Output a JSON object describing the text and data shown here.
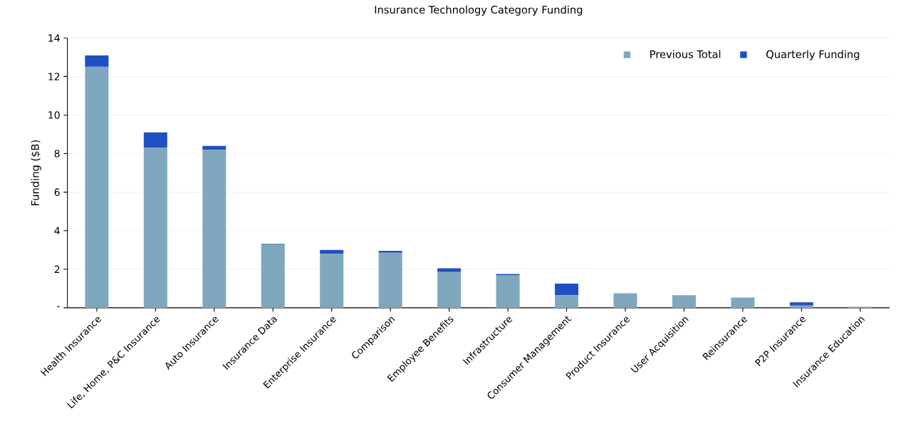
{
  "chart_data": {
    "type": "bar",
    "title": "Insurance Technology Category Funding",
    "ylabel": "Funding ($B)",
    "categories": [
      "Health Insurance",
      "Life, Home, P&C Insurance",
      "Auto Insurance",
      "Insurance Data",
      "Enterprise Insurance",
      "Comparison",
      "Employee Benefits",
      "Infrastructure",
      "Consumer Management",
      "Product Insurance",
      "User Acquisition",
      "Reinsurance",
      "P2P Insurance",
      "Insurance Education"
    ],
    "series": [
      {
        "name": "Previous Total",
        "color": "#7fa7bd",
        "values": [
          12.5,
          8.3,
          8.2,
          3.3,
          2.8,
          2.85,
          1.85,
          1.7,
          0.65,
          0.75,
          0.65,
          0.53,
          0.12,
          0.05
        ]
      },
      {
        "name": "Quarterly Funding",
        "color": "#1f4fc0",
        "values": [
          0.6,
          0.8,
          0.2,
          0.02,
          0.2,
          0.1,
          0.2,
          0.05,
          0.6,
          0,
          0,
          0,
          0.16,
          null
        ]
      }
    ],
    "stacked": true,
    "ylim": [
      0,
      14
    ],
    "yticks": [
      {
        "value": 0,
        "label": "-"
      },
      2,
      4,
      6,
      8,
      10,
      12,
      14
    ],
    "grid": "y",
    "legend": "top right"
  }
}
